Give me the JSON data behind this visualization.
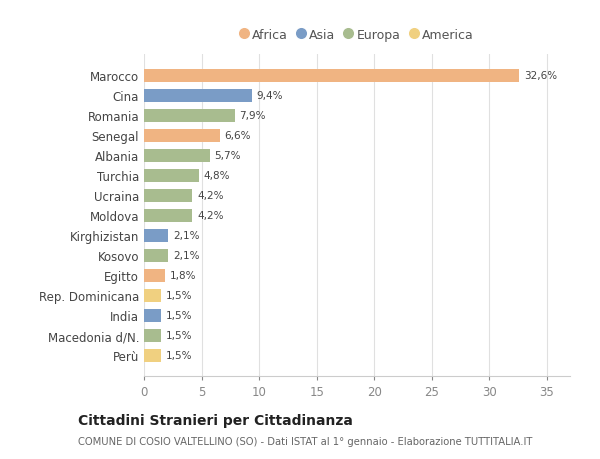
{
  "categories": [
    "Marocco",
    "Cina",
    "Romania",
    "Senegal",
    "Albania",
    "Turchia",
    "Ucraina",
    "Moldova",
    "Kirghizistan",
    "Kosovo",
    "Egitto",
    "Rep. Dominicana",
    "India",
    "Macedonia d/N.",
    "Perù"
  ],
  "values": [
    32.6,
    9.4,
    7.9,
    6.6,
    5.7,
    4.8,
    4.2,
    4.2,
    2.1,
    2.1,
    1.8,
    1.5,
    1.5,
    1.5,
    1.5
  ],
  "labels": [
    "32,6%",
    "9,4%",
    "7,9%",
    "6,6%",
    "5,7%",
    "4,8%",
    "4,2%",
    "4,2%",
    "2,1%",
    "2,1%",
    "1,8%",
    "1,5%",
    "1,5%",
    "1,5%",
    "1,5%"
  ],
  "continents": [
    "Africa",
    "Asia",
    "Europa",
    "Africa",
    "Europa",
    "Europa",
    "Europa",
    "Europa",
    "Asia",
    "Europa",
    "Africa",
    "America",
    "Asia",
    "Europa",
    "America"
  ],
  "continent_colors": {
    "Africa": "#F0B482",
    "Asia": "#7A9CC6",
    "Europa": "#A8BC8F",
    "America": "#F0D080"
  },
  "legend_order": [
    "Africa",
    "Asia",
    "Europa",
    "America"
  ],
  "title": "Cittadini Stranieri per Cittadinanza",
  "subtitle": "COMUNE DI COSIO VALTELLINO (SO) - Dati ISTAT al 1° gennaio - Elaborazione TUTTITALIA.IT",
  "xlim": [
    0,
    37
  ],
  "xticks": [
    0,
    5,
    10,
    15,
    20,
    25,
    30,
    35
  ],
  "background_color": "#ffffff",
  "grid_color": "#e0e0e0"
}
